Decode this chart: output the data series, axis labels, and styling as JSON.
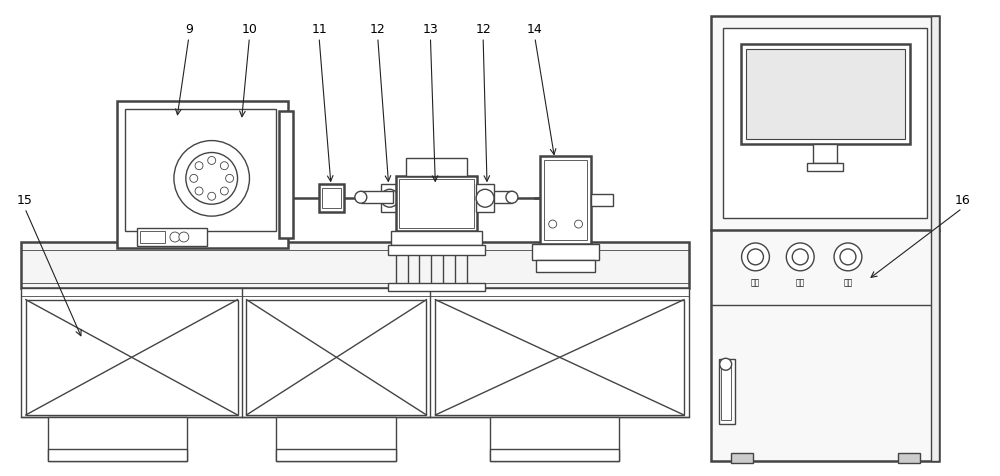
{
  "bg_color": "#ffffff",
  "lc": "#444444",
  "lc_light": "#888888",
  "lc_dark": "#222222",
  "lw": 1.0,
  "lw2": 1.8,
  "btn_labels": [
    "启动",
    "暂停",
    "急停"
  ],
  "label_fs": 9,
  "btn_fs": 5.5,
  "figw": 10.0,
  "figh": 4.76,
  "dpi": 100
}
